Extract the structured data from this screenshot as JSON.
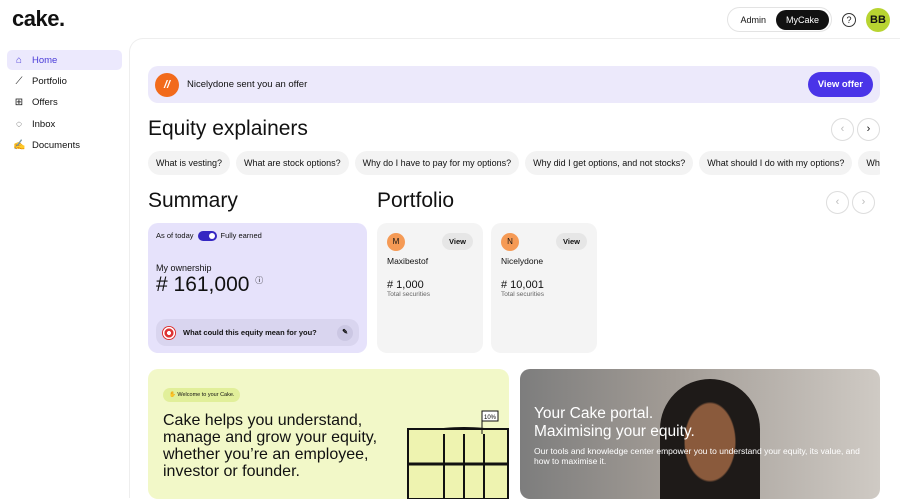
{
  "logo": "cake.",
  "header": {
    "modes": [
      "Admin",
      "MyCake"
    ],
    "active_mode": "MyCake",
    "help_icon": "question-circle-icon",
    "avatar": "BB"
  },
  "sidebar": {
    "items": [
      {
        "label": "Home",
        "icon": "home-icon",
        "active": true
      },
      {
        "label": "Portfolio",
        "icon": "chart-line-icon"
      },
      {
        "label": "Offers",
        "icon": "gift-icon"
      },
      {
        "label": "Inbox",
        "icon": "chat-icon"
      },
      {
        "label": "Documents",
        "icon": "signature-icon"
      }
    ]
  },
  "banner": {
    "message": "Nicelydone sent you an offer",
    "button": "View offer"
  },
  "explainers": {
    "title": "Equity explainers",
    "chips": [
      "What is vesting?",
      "What are stock options?",
      "Why do I have to pay for my options?",
      "Why did I get options, and not stocks?",
      "What should I do with my options?",
      "Wh"
    ]
  },
  "summary": {
    "title": "Summary",
    "as_of": "As of today",
    "toggle_label": "Fully earned",
    "toggle_on": true,
    "ownership_label": "My ownership",
    "ownership_value": "# 161,000",
    "prompt": "What could this equity mean for you?"
  },
  "portfolio": {
    "title": "Portfolio",
    "cards": [
      {
        "initial": "M",
        "name": "Maxibestof",
        "value": "# 1,000",
        "label": "Total securities",
        "button": "View"
      },
      {
        "initial": "N",
        "name": "Nicelydone",
        "value": "# 10,001",
        "label": "Total securities",
        "button": "View"
      }
    ]
  },
  "welcome": {
    "badge": "Welcome to your Cake.",
    "text": "Cake helps you understand, manage and grow your equity, whether you’re an employee, investor or founder.",
    "flag": "10%"
  },
  "portal": {
    "title1": "Your Cake portal.",
    "title2": "Maximising your equity.",
    "desc": "Our tools and knowledge center empower you to understand your equity, its value, and how to maximise it."
  }
}
